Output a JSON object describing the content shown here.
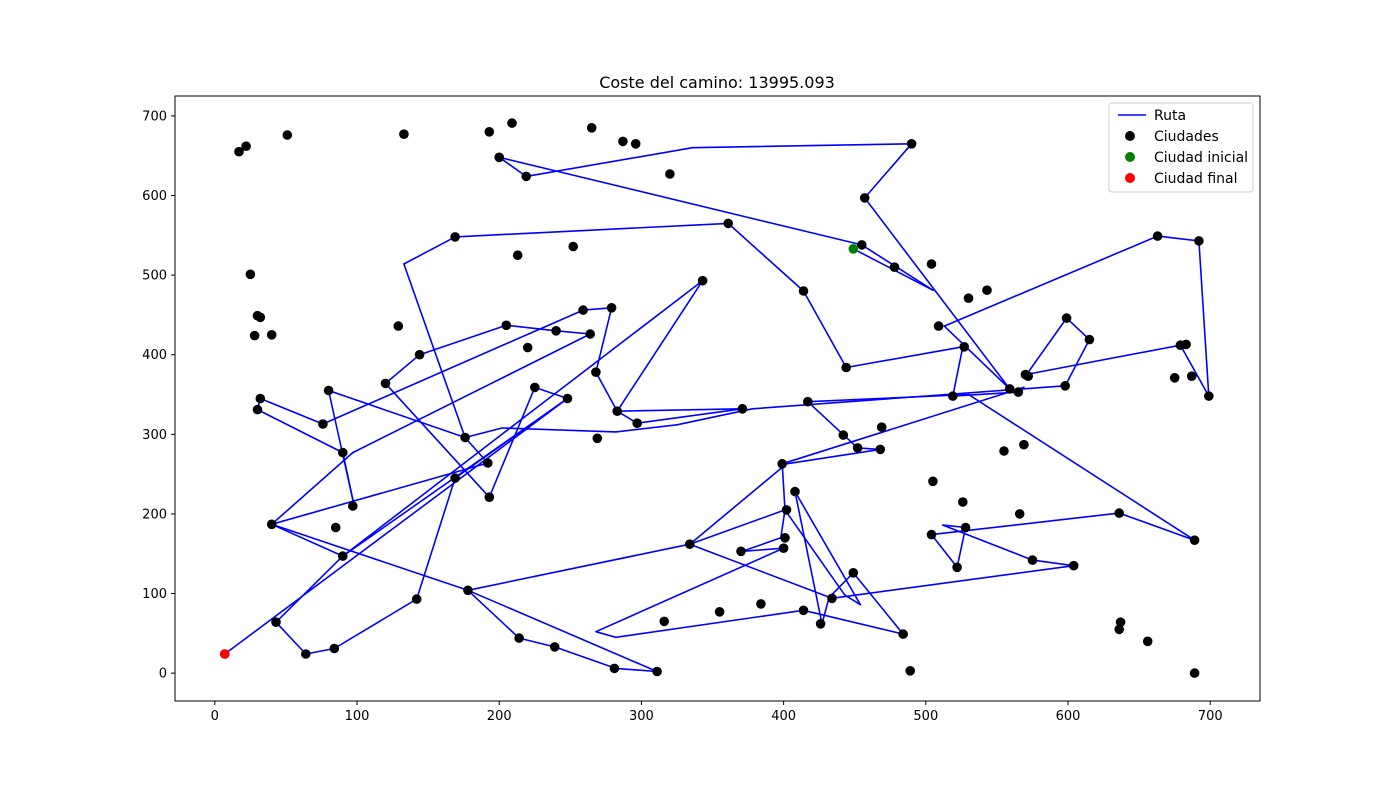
{
  "chart_data": {
    "type": "scatter",
    "title": "Coste del camino: 13995.093",
    "xlabel": "",
    "ylabel": "",
    "xlim": [
      -28,
      735
    ],
    "ylim": [
      -35,
      725
    ],
    "x_ticks": [
      0,
      100,
      200,
      300,
      400,
      500,
      600,
      700
    ],
    "y_ticks": [
      0,
      100,
      200,
      300,
      400,
      500,
      600,
      700
    ],
    "grid": false,
    "legend_position": "top-right",
    "legend": [
      {
        "label": "Ruta",
        "kind": "line",
        "color": "#0000ff"
      },
      {
        "label": "Ciudades",
        "kind": "marker",
        "color": "#000000"
      },
      {
        "label": "Ciudad inicial",
        "kind": "marker",
        "color": "#008000"
      },
      {
        "label": "Ciudad final",
        "kind": "marker",
        "color": "#ff0000"
      }
    ],
    "start_city": [
      449,
      533
    ],
    "end_city": [
      7,
      24
    ],
    "route_color": "#0000ff",
    "city_color": "#000000",
    "route": [
      [
        449,
        533
      ],
      [
        505,
        481
      ],
      [
        455,
        538
      ],
      [
        200,
        648
      ],
      [
        219,
        624
      ],
      [
        336,
        660
      ],
      [
        490,
        665
      ],
      [
        457,
        597
      ],
      [
        559,
        357
      ],
      [
        513,
        436
      ],
      [
        663,
        549
      ],
      [
        692,
        543
      ],
      [
        699,
        348
      ],
      [
        679,
        412
      ],
      [
        570,
        375
      ],
      [
        570,
        373
      ],
      [
        599,
        446
      ],
      [
        615,
        419
      ],
      [
        598,
        361
      ],
      [
        378,
        332
      ],
      [
        325,
        312
      ],
      [
        282,
        303
      ],
      [
        202,
        308
      ],
      [
        176,
        296
      ],
      [
        80,
        355
      ],
      [
        98,
        210
      ],
      [
        90,
        277
      ],
      [
        30,
        331
      ],
      [
        32,
        345
      ],
      [
        76,
        313
      ],
      [
        259,
        456
      ],
      [
        279,
        459
      ],
      [
        268,
        378
      ],
      [
        283,
        329
      ],
      [
        297,
        314
      ],
      [
        371,
        332
      ],
      [
        283,
        329
      ],
      [
        343,
        493
      ],
      [
        90,
        147
      ],
      [
        248,
        345
      ],
      [
        169,
        245
      ],
      [
        142,
        93
      ],
      [
        84,
        31
      ],
      [
        64,
        24
      ],
      [
        43,
        64
      ],
      [
        90,
        147
      ],
      [
        40,
        187
      ],
      [
        192,
        264
      ],
      [
        176,
        296
      ],
      [
        133,
        514
      ],
      [
        169,
        548
      ],
      [
        361,
        565
      ],
      [
        414,
        480
      ],
      [
        444,
        384
      ],
      [
        526,
        410
      ],
      [
        519,
        348
      ],
      [
        565,
        353
      ],
      [
        569,
        359
      ],
      [
        399,
        263
      ],
      [
        401,
        205
      ],
      [
        443,
        98
      ],
      [
        454,
        86
      ],
      [
        408,
        228
      ],
      [
        427,
        62
      ],
      [
        432,
        95
      ],
      [
        449,
        126
      ],
      [
        484,
        49
      ],
      [
        414,
        79
      ],
      [
        282,
        45
      ],
      [
        268,
        52
      ],
      [
        400,
        157
      ],
      [
        371,
        153
      ],
      [
        398,
        170
      ],
      [
        401,
        205
      ],
      [
        334,
        162
      ],
      [
        434,
        94
      ],
      [
        604,
        135
      ],
      [
        575,
        142
      ],
      [
        512,
        186
      ],
      [
        528,
        183
      ],
      [
        522,
        133
      ],
      [
        504,
        174
      ],
      [
        636,
        201
      ],
      [
        689,
        167
      ],
      [
        530,
        350
      ],
      [
        417,
        341
      ],
      [
        452,
        283
      ],
      [
        468,
        281
      ],
      [
        402,
        263
      ],
      [
        334,
        162
      ],
      [
        178,
        104
      ],
      [
        214,
        44
      ],
      [
        239,
        33
      ],
      [
        282,
        6
      ],
      [
        311,
        2
      ],
      [
        178,
        104
      ],
      [
        40,
        187
      ],
      [
        97,
        277
      ],
      [
        264,
        426
      ],
      [
        240,
        430
      ],
      [
        205,
        437
      ],
      [
        144,
        400
      ],
      [
        120,
        364
      ],
      [
        193,
        221
      ],
      [
        225,
        359
      ],
      [
        248,
        345
      ],
      [
        7,
        24
      ]
    ],
    "cities": [
      [
        7,
        24
      ],
      [
        17,
        655
      ],
      [
        22,
        662
      ],
      [
        25,
        501
      ],
      [
        28,
        424
      ],
      [
        30,
        331
      ],
      [
        30,
        449
      ],
      [
        32,
        345
      ],
      [
        32,
        447
      ],
      [
        40,
        187
      ],
      [
        40,
        425
      ],
      [
        43,
        64
      ],
      [
        51,
        676
      ],
      [
        64,
        24
      ],
      [
        76,
        313
      ],
      [
        80,
        355
      ],
      [
        84,
        31
      ],
      [
        85,
        183
      ],
      [
        90,
        147
      ],
      [
        90,
        277
      ],
      [
        97,
        210
      ],
      [
        120,
        364
      ],
      [
        129,
        436
      ],
      [
        133,
        677
      ],
      [
        142,
        93
      ],
      [
        144,
        400
      ],
      [
        169,
        245
      ],
      [
        169,
        548
      ],
      [
        176,
        296
      ],
      [
        178,
        104
      ],
      [
        192,
        264
      ],
      [
        193,
        221
      ],
      [
        193,
        680
      ],
      [
        200,
        648
      ],
      [
        205,
        437
      ],
      [
        209,
        691
      ],
      [
        213,
        525
      ],
      [
        214,
        44
      ],
      [
        219,
        624
      ],
      [
        220,
        409
      ],
      [
        225,
        359
      ],
      [
        239,
        33
      ],
      [
        240,
        430
      ],
      [
        248,
        345
      ],
      [
        252,
        536
      ],
      [
        259,
        456
      ],
      [
        264,
        426
      ],
      [
        265,
        685
      ],
      [
        268,
        378
      ],
      [
        269,
        295
      ],
      [
        279,
        459
      ],
      [
        281,
        6
      ],
      [
        283,
        329
      ],
      [
        287,
        668
      ],
      [
        296,
        665
      ],
      [
        297,
        314
      ],
      [
        311,
        2
      ],
      [
        316,
        65
      ],
      [
        320,
        627
      ],
      [
        334,
        162
      ],
      [
        343,
        493
      ],
      [
        355,
        77
      ],
      [
        361,
        565
      ],
      [
        370,
        153
      ],
      [
        371,
        332
      ],
      [
        384,
        87
      ],
      [
        399,
        263
      ],
      [
        400,
        157
      ],
      [
        401,
        170
      ],
      [
        402,
        205
      ],
      [
        408,
        228
      ],
      [
        414,
        79
      ],
      [
        414,
        480
      ],
      [
        417,
        341
      ],
      [
        426,
        62
      ],
      [
        434,
        94
      ],
      [
        442,
        299
      ],
      [
        444,
        384
      ],
      [
        449,
        126
      ],
      [
        452,
        283
      ],
      [
        455,
        538
      ],
      [
        457,
        597
      ],
      [
        468,
        281
      ],
      [
        469,
        309
      ],
      [
        478,
        510
      ],
      [
        484,
        49
      ],
      [
        489,
        3
      ],
      [
        490,
        665
      ],
      [
        505,
        241
      ],
      [
        504,
        174
      ],
      [
        504,
        514
      ],
      [
        509,
        436
      ],
      [
        519,
        348
      ],
      [
        522,
        133
      ],
      [
        526,
        215
      ],
      [
        527,
        410
      ],
      [
        528,
        183
      ],
      [
        530,
        471
      ],
      [
        543,
        481
      ],
      [
        555,
        279
      ],
      [
        559,
        357
      ],
      [
        565,
        353
      ],
      [
        566,
        200
      ],
      [
        569,
        287
      ],
      [
        570,
        375
      ],
      [
        572,
        373
      ],
      [
        575,
        142
      ],
      [
        598,
        361
      ],
      [
        599,
        446
      ],
      [
        604,
        135
      ],
      [
        615,
        419
      ],
      [
        636,
        201
      ],
      [
        636,
        55
      ],
      [
        637,
        64
      ],
      [
        656,
        40
      ],
      [
        663,
        549
      ],
      [
        675,
        371
      ],
      [
        679,
        412
      ],
      [
        683,
        413
      ],
      [
        687,
        373
      ],
      [
        689,
        0
      ],
      [
        689,
        167
      ],
      [
        692,
        543
      ],
      [
        699,
        348
      ]
    ]
  }
}
